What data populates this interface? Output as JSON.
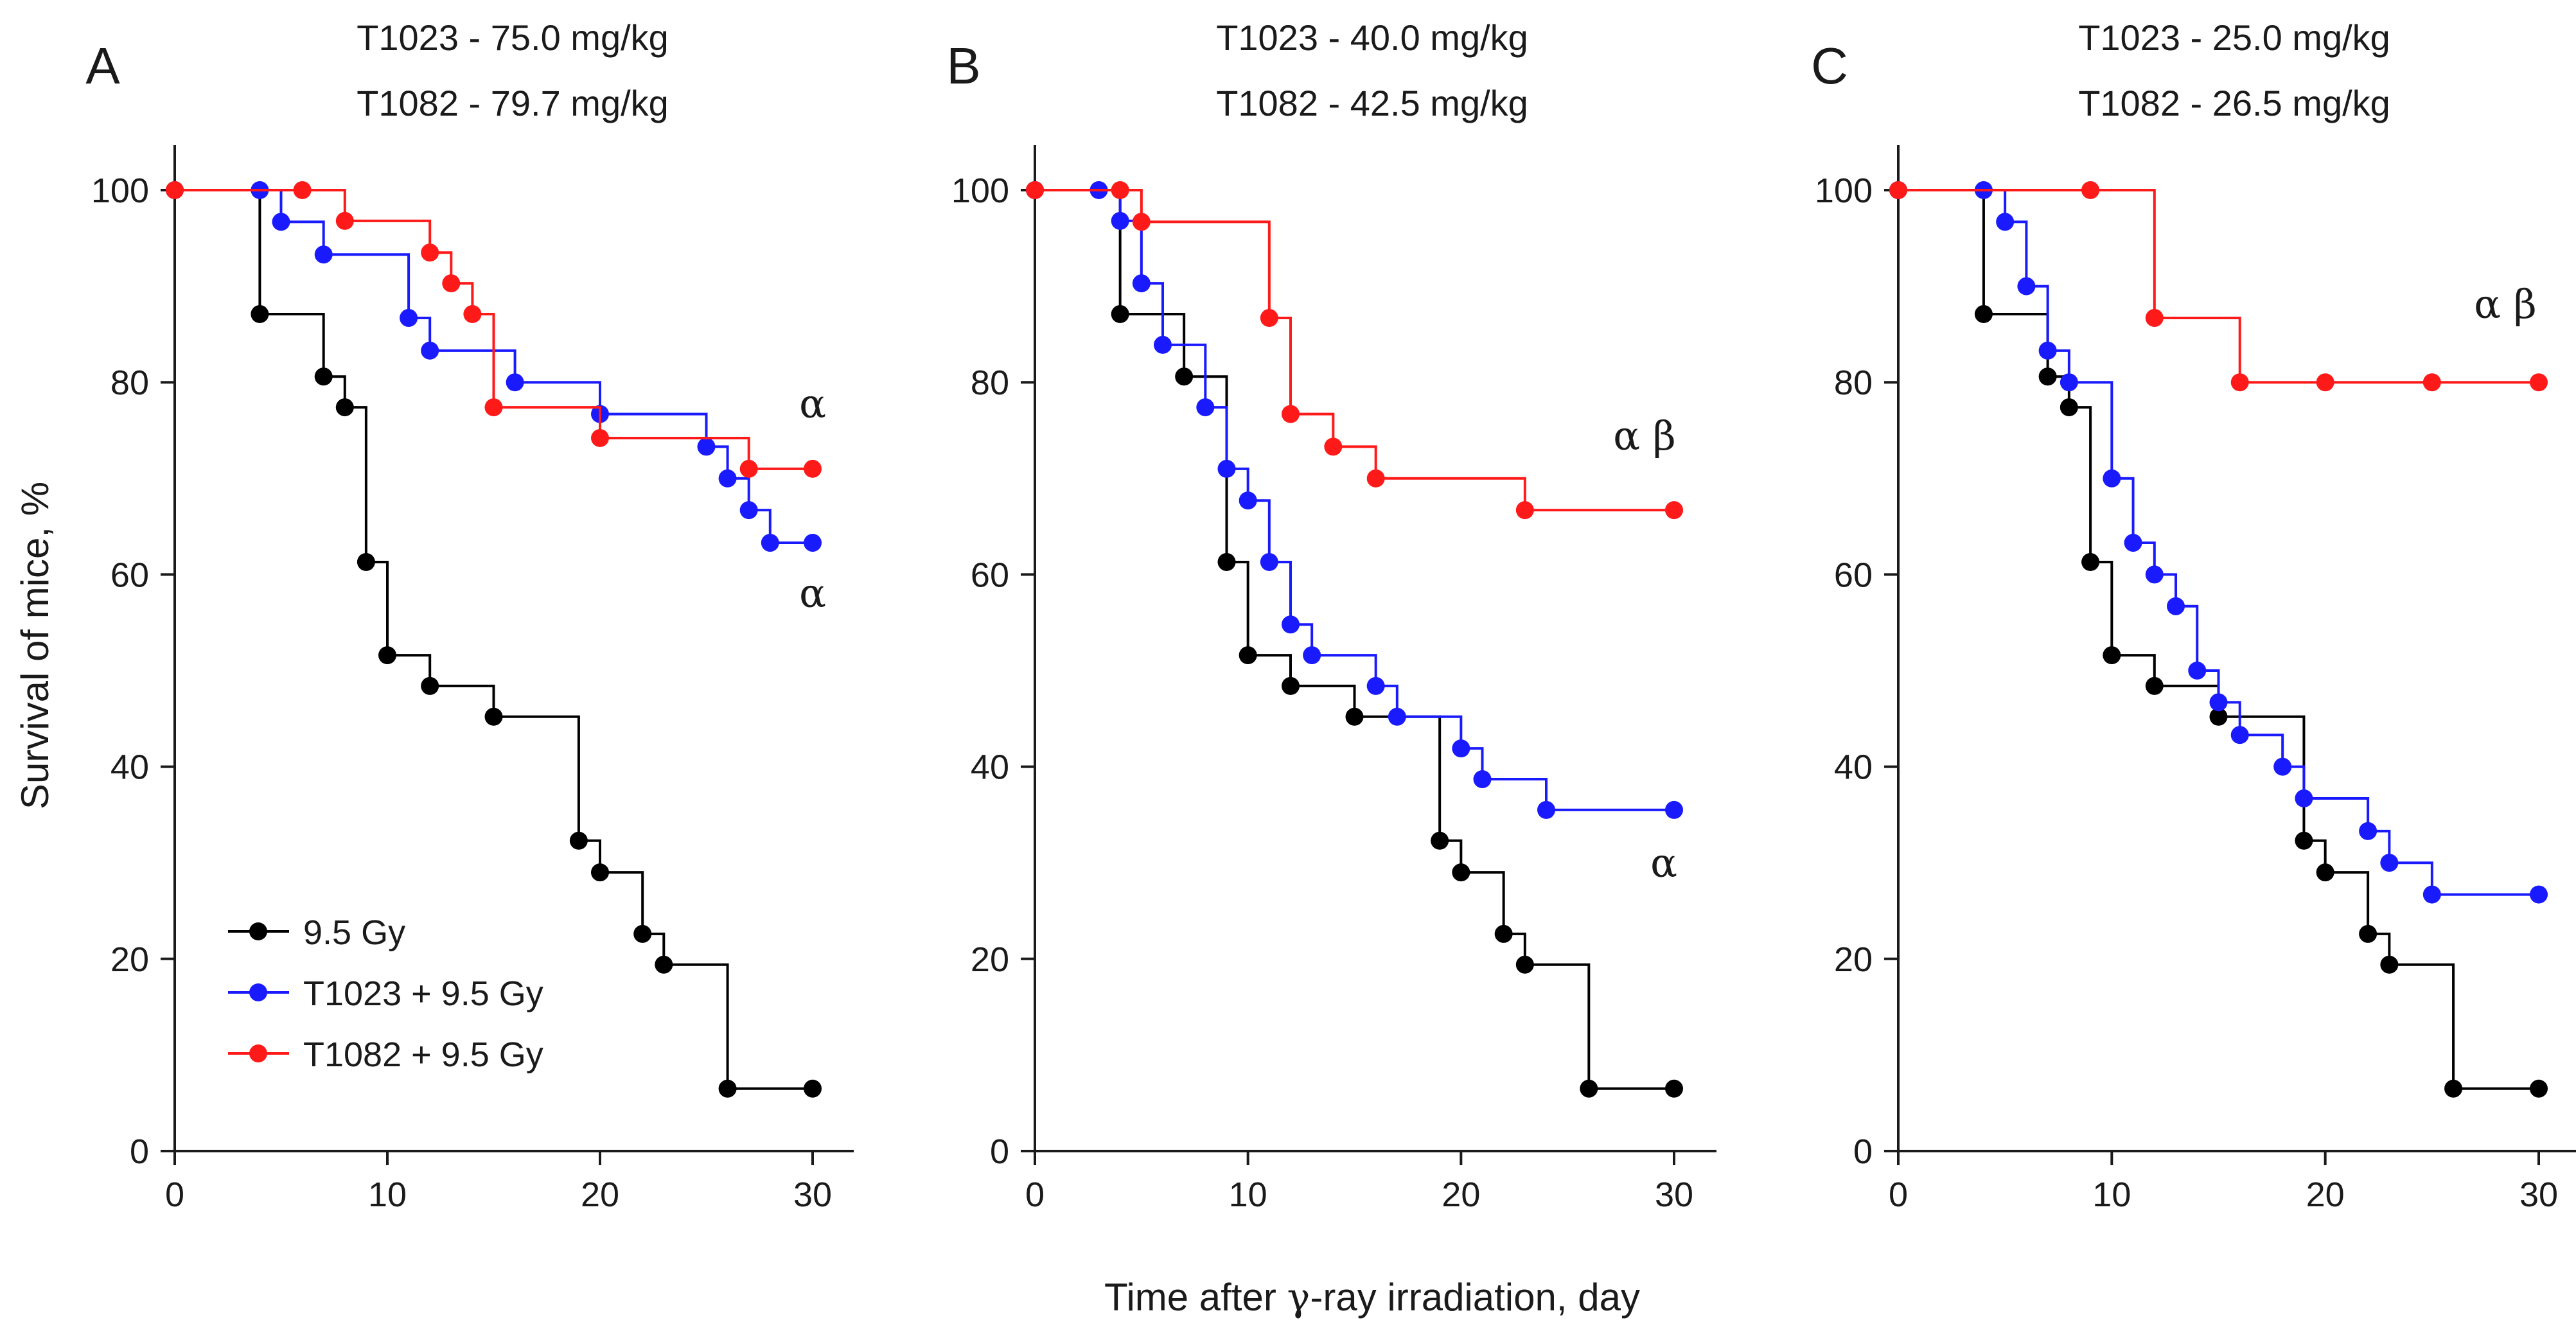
{
  "figure": {
    "ylabel": "Survival of mice, %",
    "xlabel_parts": [
      "Time after ",
      "γ",
      "-ray irradiation, day"
    ]
  },
  "legend": {
    "entries": [
      {
        "label": "9.5 Gy",
        "color": "#000000"
      },
      {
        "label": "T1023 + 9.5 Gy",
        "color": "#1a1aff"
      },
      {
        "label": "T1082 + 9.5 Gy",
        "color": "#ff1a1a"
      }
    ]
  },
  "chart_data": [
    {
      "type": "line",
      "panel": "A",
      "title_lines": [
        "T1023 - 75.0 mg/kg",
        "T1082 - 79.7 mg/kg"
      ],
      "xlabel": "Time after γ-ray irradiation, day",
      "ylabel": "Survival of mice, %",
      "xlim": [
        0,
        32
      ],
      "ylim": [
        0,
        105
      ],
      "xticks": [
        0,
        10,
        20,
        30
      ],
      "yticks": [
        0,
        20,
        40,
        60,
        80,
        100
      ],
      "series": [
        {
          "name": "9.5 Gy",
          "color": "#000000",
          "x": [
            0,
            4,
            7,
            8,
            9,
            10,
            12,
            15,
            19,
            20,
            22,
            23,
            26,
            30
          ],
          "y": [
            100,
            87.1,
            80.6,
            77.4,
            61.3,
            51.6,
            48.4,
            45.2,
            32.3,
            29,
            22.6,
            19.4,
            6.5,
            6.5
          ]
        },
        {
          "name": "T1023 + 9.5 Gy",
          "color": "#1a1aff",
          "x": [
            0,
            4,
            5,
            7,
            11,
            12,
            16,
            20,
            25,
            26,
            27,
            28,
            30
          ],
          "y": [
            100,
            100,
            96.7,
            93.3,
            86.7,
            83.3,
            80,
            76.7,
            73.3,
            70,
            66.7,
            63.3,
            63.3
          ]
        },
        {
          "name": "T1082 + 9.5 Gy",
          "color": "#ff1a1a",
          "x": [
            0,
            6,
            8,
            12,
            13,
            14,
            15,
            20,
            27,
            30
          ],
          "y": [
            100,
            100,
            96.8,
            93.5,
            90.3,
            87.1,
            77.4,
            74.2,
            71,
            71
          ]
        }
      ],
      "annotations": [
        {
          "text": "α",
          "series": "T1082 + 9.5 Gy"
        },
        {
          "text": "α",
          "series": "T1023 + 9.5 Gy"
        }
      ]
    },
    {
      "type": "line",
      "panel": "B",
      "title_lines": [
        "T1023 - 40.0 mg/kg",
        "T1082 - 42.5 mg/kg"
      ],
      "xlabel": "Time after γ-ray irradiation, day",
      "ylabel": "",
      "xlim": [
        0,
        32
      ],
      "ylim": [
        0,
        105
      ],
      "xticks": [
        0,
        10,
        20,
        30
      ],
      "yticks": [
        0,
        20,
        40,
        60,
        80,
        100
      ],
      "series": [
        {
          "name": "9.5 Gy",
          "color": "#000000",
          "x": [
            0,
            4,
            7,
            9,
            10,
            12,
            15,
            19,
            20,
            22,
            23,
            26,
            30
          ],
          "y": [
            100,
            87.1,
            80.6,
            61.3,
            51.6,
            48.4,
            45.2,
            32.3,
            29,
            22.6,
            19.4,
            6.5,
            6.5
          ]
        },
        {
          "name": "T1023 + 9.5 Gy",
          "color": "#1a1aff",
          "x": [
            0,
            3,
            4,
            5,
            6,
            8,
            9,
            10,
            11,
            12,
            13,
            16,
            17,
            20,
            21,
            24,
            30
          ],
          "y": [
            100,
            100,
            96.8,
            90.3,
            83.9,
            77.4,
            71,
            67.7,
            61.3,
            54.8,
            51.6,
            48.4,
            45.2,
            41.9,
            38.7,
            35.5,
            35.5
          ]
        },
        {
          "name": "T1082 + 9.5 Gy",
          "color": "#ff1a1a",
          "x": [
            0,
            4,
            5,
            11,
            12,
            14,
            16,
            23,
            30
          ],
          "y": [
            100,
            100,
            96.7,
            86.7,
            76.7,
            73.3,
            70,
            66.7,
            66.7
          ]
        }
      ],
      "annotations": [
        {
          "text": "α β",
          "series": "T1082 + 9.5 Gy"
        },
        {
          "text": "α",
          "series": "T1023 + 9.5 Gy"
        }
      ]
    },
    {
      "type": "line",
      "panel": "C",
      "title_lines": [
        "T1023 - 25.0 mg/kg",
        "T1082 - 26.5 mg/kg"
      ],
      "xlabel": "Time after γ-ray irradiation, day",
      "ylabel": "",
      "xlim": [
        0,
        32
      ],
      "ylim": [
        0,
        105
      ],
      "xticks": [
        0,
        10,
        20,
        30
      ],
      "yticks": [
        0,
        20,
        40,
        60,
        80,
        100
      ],
      "series": [
        {
          "name": "9.5 Gy",
          "color": "#000000",
          "x": [
            0,
            4,
            7,
            8,
            9,
            10,
            12,
            15,
            19,
            20,
            22,
            23,
            26,
            30
          ],
          "y": [
            100,
            87.1,
            80.6,
            77.4,
            61.3,
            51.6,
            48.4,
            45.2,
            32.3,
            29,
            22.6,
            19.4,
            6.5,
            6.5
          ]
        },
        {
          "name": "T1023 + 9.5 Gy",
          "color": "#1a1aff",
          "x": [
            0,
            4,
            5,
            6,
            7,
            8,
            10,
            11,
            12,
            13,
            14,
            15,
            16,
            18,
            19,
            22,
            23,
            25,
            30
          ],
          "y": [
            100,
            100,
            96.7,
            90,
            83.3,
            80,
            70,
            63.3,
            60,
            56.7,
            50,
            46.7,
            43.3,
            40,
            36.7,
            33.3,
            30,
            26.7,
            26.7
          ]
        },
        {
          "name": "T1082 + 9.5 Gy",
          "color": "#ff1a1a",
          "x": [
            0,
            9,
            12,
            16,
            20,
            25,
            30
          ],
          "y": [
            100,
            100,
            86.7,
            80,
            80,
            80,
            80
          ]
        }
      ],
      "annotations": [
        {
          "text": "α β",
          "series": "T1082 + 9.5 Gy"
        }
      ]
    }
  ]
}
